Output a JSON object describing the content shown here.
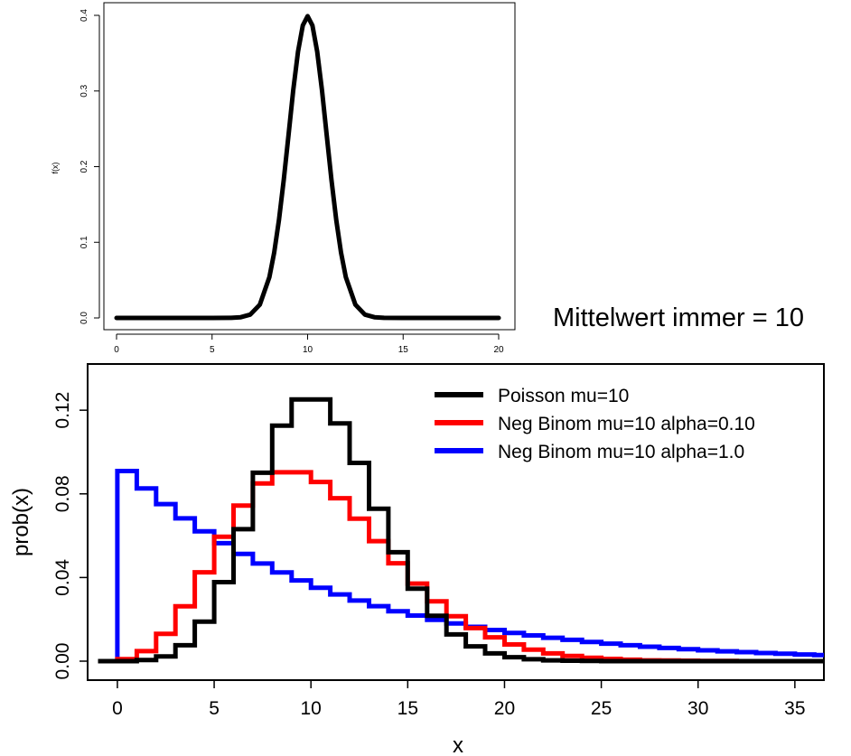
{
  "annotation": "Mittelwert immer = 10",
  "chart_data": [
    {
      "type": "line",
      "title": "",
      "xlabel": "",
      "ylabel": "f(x)",
      "xlim": [
        0,
        20
      ],
      "ylim": [
        0,
        0.4
      ],
      "x_ticks": [
        0,
        5,
        10,
        15,
        20
      ],
      "x_tick_labels": [
        "0",
        "5",
        "10",
        "15",
        "20"
      ],
      "y_ticks": [
        0,
        0.1,
        0.2,
        0.3,
        0.4
      ],
      "y_tick_labels": [
        "0.0",
        "0.1",
        "0.2",
        "0.3",
        "0.4"
      ],
      "grid": false,
      "series": [
        {
          "color": "#000000",
          "x": [
            0,
            1,
            2,
            3,
            4,
            5,
            6,
            6.5,
            7,
            7.5,
            8,
            8.25,
            8.5,
            8.75,
            9,
            9.25,
            9.5,
            9.75,
            10,
            10.25,
            10.5,
            10.75,
            11,
            11.25,
            11.5,
            11.75,
            12,
            12.5,
            13,
            13.5,
            14,
            15,
            16,
            17,
            18,
            19,
            20
          ],
          "y": [
            0,
            0,
            0,
            0,
            0,
            0,
            0.0001,
            0.0009,
            0.0044,
            0.0175,
            0.054,
            0.0863,
            0.1295,
            0.1826,
            0.242,
            0.3011,
            0.3521,
            0.3867,
            0.3989,
            0.3867,
            0.3521,
            0.3011,
            0.242,
            0.1826,
            0.1295,
            0.0863,
            0.054,
            0.0175,
            0.0044,
            0.0009,
            0.0001,
            0,
            0,
            0,
            0,
            0,
            0
          ]
        }
      ]
    },
    {
      "type": "line",
      "step": true,
      "title": "",
      "xlabel": "x",
      "ylabel": "prob(x)",
      "xlim": [
        -1,
        36.5
      ],
      "ylim": [
        0,
        0.13
      ],
      "x_ticks": [
        0,
        5,
        10,
        15,
        20,
        25,
        30,
        35
      ],
      "x_tick_labels": [
        "0",
        "5",
        "10",
        "15",
        "20",
        "25",
        "30",
        "35"
      ],
      "y_ticks": [
        0,
        0.04,
        0.08,
        0.12
      ],
      "y_tick_labels": [
        "0.00",
        "0.04",
        "0.08",
        "0.12"
      ],
      "grid": false,
      "legend": "top-right",
      "series": [
        {
          "name": "Poisson mu=10",
          "color": "#000000",
          "x": [
            0,
            1,
            2,
            3,
            4,
            5,
            6,
            7,
            8,
            9,
            10,
            11,
            12,
            13,
            14,
            15,
            16,
            17,
            18,
            19,
            20,
            21,
            22,
            23,
            24,
            25,
            26,
            27,
            28,
            29,
            30,
            31,
            32,
            33,
            34,
            35,
            36
          ],
          "y": [
            0.0,
            0.0005,
            0.0023,
            0.0076,
            0.0189,
            0.0378,
            0.0631,
            0.0901,
            0.1126,
            0.1251,
            0.1251,
            0.1137,
            0.0948,
            0.0729,
            0.0521,
            0.0347,
            0.0217,
            0.0128,
            0.0071,
            0.0037,
            0.0019,
            0.0009,
            0.0004,
            0.0002,
            0.0001,
            0,
            0,
            0,
            0,
            0,
            0,
            0,
            0,
            0,
            0,
            0,
            0
          ]
        },
        {
          "name": "Neg Binom mu=10 alpha=0.10",
          "color": "#ff0000",
          "x": [
            0,
            1,
            2,
            3,
            4,
            5,
            6,
            7,
            8,
            9,
            10,
            11,
            12,
            13,
            14,
            15,
            16,
            17,
            18,
            19,
            20,
            21,
            22,
            23,
            24,
            25,
            26,
            27,
            28,
            29,
            30,
            31,
            32,
            33,
            34,
            35,
            36
          ],
          "y": [
            0.001,
            0.0048,
            0.0131,
            0.0262,
            0.0425,
            0.0595,
            0.0744,
            0.085,
            0.0903,
            0.0903,
            0.0857,
            0.0779,
            0.0681,
            0.0574,
            0.0468,
            0.0371,
            0.0286,
            0.0215,
            0.0158,
            0.0114,
            0.008,
            0.0055,
            0.0037,
            0.0025,
            0.0016,
            0.0011,
            0.0007,
            0.0004,
            0.0003,
            0.0002,
            0.0001,
            0.0001,
            0,
            0,
            0,
            0,
            0
          ]
        },
        {
          "name": "Neg Binom mu=10 alpha=1.0",
          "color": "#0000ff",
          "x": [
            0,
            1,
            2,
            3,
            4,
            5,
            6,
            7,
            8,
            9,
            10,
            11,
            12,
            13,
            14,
            15,
            16,
            17,
            18,
            19,
            20,
            21,
            22,
            23,
            24,
            25,
            26,
            27,
            28,
            29,
            30,
            31,
            32,
            33,
            34,
            35,
            36
          ],
          "y": [
            0.0909,
            0.0826,
            0.0751,
            0.0683,
            0.0621,
            0.0564,
            0.0513,
            0.0467,
            0.0424,
            0.0386,
            0.0351,
            0.0319,
            0.029,
            0.0263,
            0.0239,
            0.0218,
            0.0198,
            0.018,
            0.0164,
            0.0149,
            0.0135,
            0.0123,
            0.0112,
            0.0102,
            0.0092,
            0.0084,
            0.0076,
            0.0069,
            0.0063,
            0.0057,
            0.0052,
            0.0047,
            0.0043,
            0.0039,
            0.0036,
            0.0032,
            0.0029
          ]
        }
      ]
    }
  ]
}
